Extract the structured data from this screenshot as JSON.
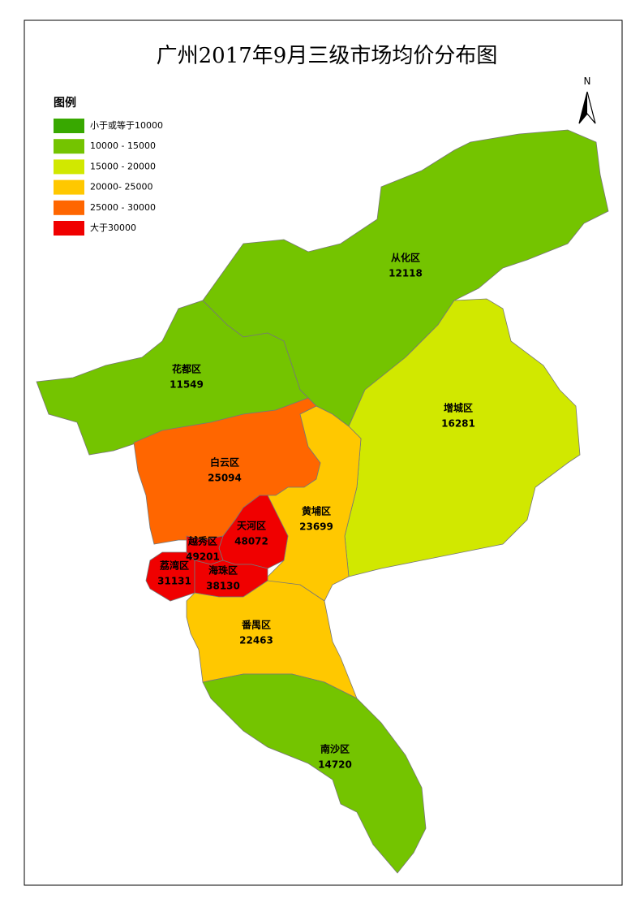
{
  "title": "广州2017年9月三级市场均价分布图",
  "north": "N",
  "legend": {
    "title": "图例",
    "items": [
      {
        "label": "小于或等于10000",
        "color": "#38a800"
      },
      {
        "label": "10000 - 15000",
        "color": "#74c400"
      },
      {
        "label": "15000 - 20000",
        "color": "#d1e800"
      },
      {
        "label": "20000- 25000",
        "color": "#ffc800"
      },
      {
        "label": "25000 - 30000",
        "color": "#ff6600"
      },
      {
        "label": "大于30000",
        "color": "#f00000"
      }
    ]
  },
  "districts": [
    {
      "name": "从化区",
      "price": 12118,
      "color": "#74c400"
    },
    {
      "name": "增城区",
      "price": 16281,
      "color": "#d1e800"
    },
    {
      "name": "花都区",
      "price": 11549,
      "color": "#74c400"
    },
    {
      "name": "白云区",
      "price": 25094,
      "color": "#ff6600"
    },
    {
      "name": "黄埔区",
      "price": 23699,
      "color": "#ffc800"
    },
    {
      "name": "天河区",
      "price": 48072,
      "color": "#f00000"
    },
    {
      "name": "越秀区",
      "price": 49201,
      "color": "#f00000"
    },
    {
      "name": "荔湾区",
      "price": 31131,
      "color": "#f00000"
    },
    {
      "name": "海珠区",
      "price": 38130,
      "color": "#f00000"
    },
    {
      "name": "番禺区",
      "price": 22463,
      "color": "#ffc800"
    },
    {
      "name": "南沙区",
      "price": 14720,
      "color": "#74c400"
    }
  ]
}
